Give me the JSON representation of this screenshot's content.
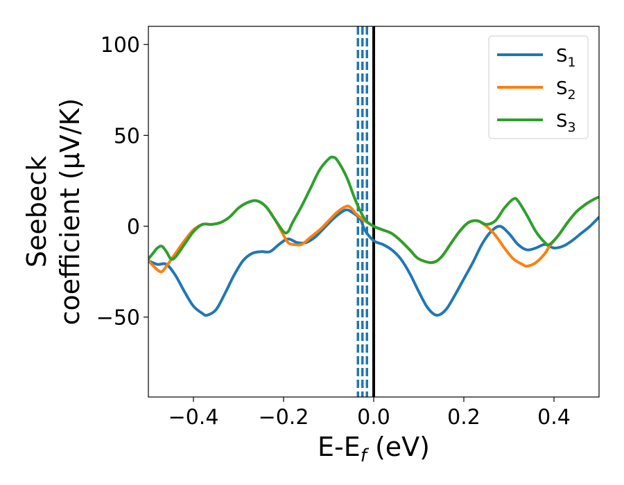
{
  "chart_data": {
    "type": "line",
    "xlabel": "E-E",
    "xlabel_sub": "f",
    "xlabel_unit": " (eV)",
    "ylabel_line1": "Seebeck",
    "ylabel_line2": "coefficient  (μV/K)",
    "xlim": [
      -0.5,
      0.5
    ],
    "ylim": [
      -94,
      110
    ],
    "xticks": [
      -0.4,
      -0.2,
      0.0,
      0.2,
      0.4
    ],
    "xtick_labels": [
      "−0.4",
      "−0.2",
      "0.0",
      "0.2",
      "0.4"
    ],
    "yticks": [
      -50,
      0,
      50,
      100
    ],
    "ytick_labels": [
      "−50",
      "0",
      "50",
      "100"
    ],
    "grid": false,
    "legend_position": "top-right",
    "vertical_lines": [
      {
        "x": -0.035,
        "style": "dashed",
        "color": "#1f77b4"
      },
      {
        "x": -0.025,
        "style": "dashed",
        "color": "#1f77b4"
      },
      {
        "x": -0.015,
        "style": "dashed",
        "color": "#1f77b4"
      },
      {
        "x": 0.0,
        "style": "solid",
        "color": "#000000"
      }
    ],
    "series": [
      {
        "name": "S",
        "name_sub": "1",
        "color": "#1f77b4",
        "points": [
          [
            -0.5,
            -19
          ],
          [
            -0.48,
            -21
          ],
          [
            -0.46,
            -21
          ],
          [
            -0.44,
            -27
          ],
          [
            -0.42,
            -36
          ],
          [
            -0.4,
            -44
          ],
          [
            -0.38,
            -48
          ],
          [
            -0.37,
            -49
          ],
          [
            -0.35,
            -46
          ],
          [
            -0.33,
            -37
          ],
          [
            -0.31,
            -27
          ],
          [
            -0.29,
            -19
          ],
          [
            -0.27,
            -15
          ],
          [
            -0.25,
            -14
          ],
          [
            -0.23,
            -14
          ],
          [
            -0.21,
            -10
          ],
          [
            -0.19,
            -7
          ],
          [
            -0.17,
            -9
          ],
          [
            -0.15,
            -9
          ],
          [
            -0.13,
            -6
          ],
          [
            -0.11,
            -1
          ],
          [
            -0.09,
            4
          ],
          [
            -0.07,
            8
          ],
          [
            -0.06,
            9
          ],
          [
            -0.05,
            8
          ],
          [
            -0.03,
            4
          ],
          [
            -0.02,
            -2
          ],
          [
            0.0,
            -8
          ],
          [
            0.02,
            -10
          ],
          [
            0.04,
            -13
          ],
          [
            0.06,
            -18
          ],
          [
            0.08,
            -26
          ],
          [
            0.1,
            -36
          ],
          [
            0.12,
            -45
          ],
          [
            0.14,
            -49
          ],
          [
            0.16,
            -46
          ],
          [
            0.18,
            -38
          ],
          [
            0.2,
            -29
          ],
          [
            0.22,
            -20
          ],
          [
            0.24,
            -10
          ],
          [
            0.26,
            -3
          ],
          [
            0.28,
            0
          ],
          [
            0.3,
            -4
          ],
          [
            0.32,
            -10
          ],
          [
            0.34,
            -13
          ],
          [
            0.36,
            -12
          ],
          [
            0.38,
            -10
          ],
          [
            0.4,
            -12
          ],
          [
            0.42,
            -11
          ],
          [
            0.44,
            -8
          ],
          [
            0.46,
            -4
          ],
          [
            0.48,
            0
          ],
          [
            0.5,
            5
          ]
        ]
      },
      {
        "name": "S",
        "name_sub": "2",
        "color": "#ff7f0e",
        "points": [
          [
            -0.5,
            -19
          ],
          [
            -0.48,
            -24
          ],
          [
            -0.47,
            -25
          ],
          [
            -0.46,
            -22
          ],
          [
            -0.44,
            -15
          ],
          [
            -0.42,
            -8
          ],
          [
            -0.4,
            -2
          ],
          [
            -0.38,
            1
          ],
          [
            -0.36,
            1
          ],
          [
            -0.34,
            2
          ],
          [
            -0.32,
            5
          ],
          [
            -0.3,
            10
          ],
          [
            -0.28,
            13
          ],
          [
            -0.26,
            14
          ],
          [
            -0.24,
            11
          ],
          [
            -0.22,
            4
          ],
          [
            -0.2,
            -5
          ],
          [
            -0.19,
            -9
          ],
          [
            -0.18,
            -10
          ],
          [
            -0.16,
            -10
          ],
          [
            -0.14,
            -6
          ],
          [
            -0.12,
            -2
          ],
          [
            -0.1,
            3
          ],
          [
            -0.08,
            8
          ],
          [
            -0.06,
            11
          ],
          [
            -0.05,
            10
          ],
          [
            -0.04,
            7
          ],
          [
            -0.02,
            3
          ],
          [
            0.0,
            0
          ],
          [
            0.02,
            -2
          ],
          [
            0.04,
            -4
          ],
          [
            0.06,
            -8
          ],
          [
            0.08,
            -13
          ],
          [
            0.1,
            -18
          ],
          [
            0.13,
            -20
          ],
          [
            0.15,
            -17
          ],
          [
            0.17,
            -10
          ],
          [
            0.19,
            -3
          ],
          [
            0.21,
            2
          ],
          [
            0.23,
            3
          ],
          [
            0.25,
            0
          ],
          [
            0.27,
            -5
          ],
          [
            0.29,
            -12
          ],
          [
            0.31,
            -18
          ],
          [
            0.33,
            -21
          ],
          [
            0.34,
            -22
          ],
          [
            0.36,
            -20
          ],
          [
            0.38,
            -15
          ],
          [
            0.39,
            -11
          ],
          [
            0.41,
            -5
          ],
          [
            0.43,
            2
          ],
          [
            0.45,
            8
          ],
          [
            0.47,
            12
          ],
          [
            0.49,
            15
          ],
          [
            0.5,
            16
          ]
        ]
      },
      {
        "name": "S",
        "name_sub": "3",
        "color": "#2ca02c",
        "points": [
          [
            -0.5,
            -18
          ],
          [
            -0.49,
            -15
          ],
          [
            -0.48,
            -12
          ],
          [
            -0.47,
            -11
          ],
          [
            -0.46,
            -14
          ],
          [
            -0.45,
            -18
          ],
          [
            -0.44,
            -17
          ],
          [
            -0.42,
            -10
          ],
          [
            -0.4,
            -3
          ],
          [
            -0.38,
            1
          ],
          [
            -0.36,
            1
          ],
          [
            -0.34,
            2
          ],
          [
            -0.32,
            5
          ],
          [
            -0.3,
            10
          ],
          [
            -0.28,
            13
          ],
          [
            -0.26,
            14
          ],
          [
            -0.24,
            11
          ],
          [
            -0.22,
            4
          ],
          [
            -0.2,
            -3
          ],
          [
            -0.19,
            -3
          ],
          [
            -0.18,
            2
          ],
          [
            -0.16,
            11
          ],
          [
            -0.14,
            21
          ],
          [
            -0.12,
            31
          ],
          [
            -0.1,
            37
          ],
          [
            -0.09,
            38
          ],
          [
            -0.08,
            36
          ],
          [
            -0.06,
            27
          ],
          [
            -0.04,
            14
          ],
          [
            -0.02,
            4
          ],
          [
            0.0,
            0
          ],
          [
            0.02,
            -2
          ],
          [
            0.04,
            -4
          ],
          [
            0.06,
            -8
          ],
          [
            0.08,
            -13
          ],
          [
            0.1,
            -18
          ],
          [
            0.13,
            -20
          ],
          [
            0.15,
            -17
          ],
          [
            0.17,
            -10
          ],
          [
            0.19,
            -3
          ],
          [
            0.21,
            2
          ],
          [
            0.23,
            3
          ],
          [
            0.25,
            1
          ],
          [
            0.27,
            3
          ],
          [
            0.29,
            10
          ],
          [
            0.31,
            15
          ],
          [
            0.32,
            14
          ],
          [
            0.34,
            6
          ],
          [
            0.36,
            -3
          ],
          [
            0.38,
            -9
          ],
          [
            0.39,
            -10
          ],
          [
            0.41,
            -5
          ],
          [
            0.43,
            2
          ],
          [
            0.45,
            8
          ],
          [
            0.47,
            12
          ],
          [
            0.49,
            15
          ],
          [
            0.5,
            16
          ]
        ]
      }
    ]
  }
}
